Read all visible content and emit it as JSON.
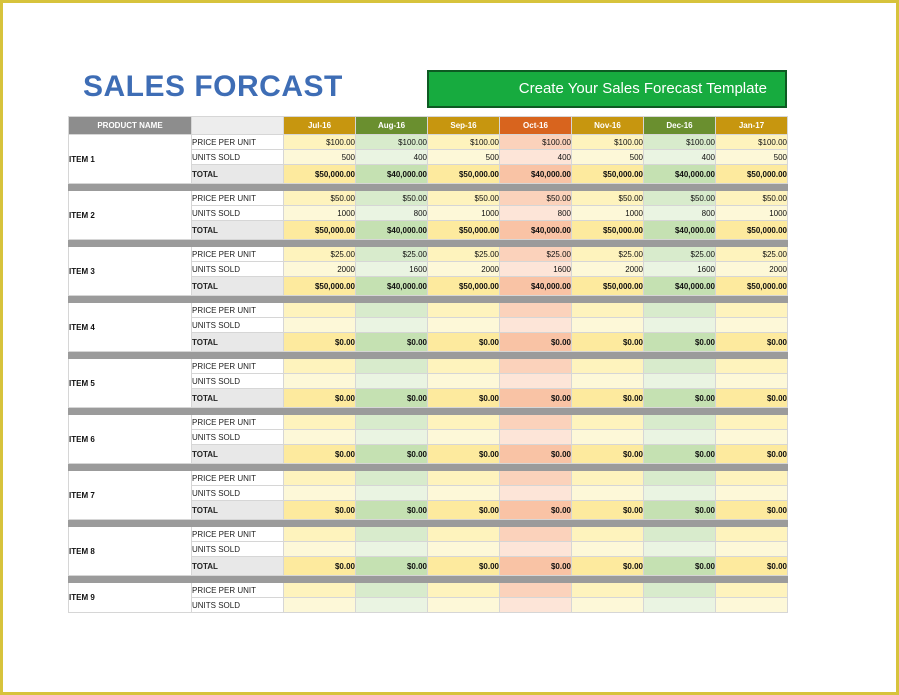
{
  "title": "SALES FORCAST",
  "banner": "Create Your Sales Forecast Template",
  "header": {
    "product_label": "PRODUCT NAME"
  },
  "months": [
    {
      "label": "Jul-16",
      "head": "#c7960f",
      "light": "#fef3bd",
      "mid": "#fdf8d8",
      "dark": "#fdea9e"
    },
    {
      "label": "Aug-16",
      "head": "#6a8f2f",
      "light": "#d8ebcc",
      "mid": "#eaf4e2",
      "dark": "#c5e1b2"
    },
    {
      "label": "Sep-16",
      "head": "#c7960f",
      "light": "#fef3bd",
      "mid": "#fdf8d8",
      "dark": "#fdea9e"
    },
    {
      "label": "Oct-16",
      "head": "#d8641e",
      "light": "#fbd2bb",
      "mid": "#fde5d8",
      "dark": "#f9c3a5"
    },
    {
      "label": "Nov-16",
      "head": "#c7960f",
      "light": "#fef3bd",
      "mid": "#fdf8d8",
      "dark": "#fdea9e"
    },
    {
      "label": "Dec-16",
      "head": "#6a8f2f",
      "light": "#d8ebcc",
      "mid": "#eaf4e2",
      "dark": "#c5e1b2"
    },
    {
      "label": "Jan-17",
      "head": "#c7960f",
      "light": "#fef3bd",
      "mid": "#fdf8d8",
      "dark": "#fdea9e"
    }
  ],
  "row_labels": {
    "price": "PRICE PER UNIT",
    "units": "UNITS SOLD",
    "total": "TOTAL"
  },
  "items": [
    {
      "name": "ITEM 1",
      "price": [
        "$100.00",
        "$100.00",
        "$100.00",
        "$100.00",
        "$100.00",
        "$100.00",
        "$100.00"
      ],
      "units": [
        "500",
        "400",
        "500",
        "400",
        "500",
        "400",
        "500"
      ],
      "total": [
        "$50,000.00",
        "$40,000.00",
        "$50,000.00",
        "$40,000.00",
        "$50,000.00",
        "$40,000.00",
        "$50,000.00"
      ]
    },
    {
      "name": "ITEM 2",
      "price": [
        "$50.00",
        "$50.00",
        "$50.00",
        "$50.00",
        "$50.00",
        "$50.00",
        "$50.00"
      ],
      "units": [
        "1000",
        "800",
        "1000",
        "800",
        "1000",
        "800",
        "1000"
      ],
      "total": [
        "$50,000.00",
        "$40,000.00",
        "$50,000.00",
        "$40,000.00",
        "$50,000.00",
        "$40,000.00",
        "$50,000.00"
      ]
    },
    {
      "name": "ITEM 3",
      "price": [
        "$25.00",
        "$25.00",
        "$25.00",
        "$25.00",
        "$25.00",
        "$25.00",
        "$25.00"
      ],
      "units": [
        "2000",
        "1600",
        "2000",
        "1600",
        "2000",
        "1600",
        "2000"
      ],
      "total": [
        "$50,000.00",
        "$40,000.00",
        "$50,000.00",
        "$40,000.00",
        "$50,000.00",
        "$40,000.00",
        "$50,000.00"
      ]
    },
    {
      "name": "ITEM 4",
      "price": [
        "",
        "",
        "",
        "",
        "",
        "",
        ""
      ],
      "units": [
        "",
        "",
        "",
        "",
        "",
        "",
        ""
      ],
      "total": [
        "$0.00",
        "$0.00",
        "$0.00",
        "$0.00",
        "$0.00",
        "$0.00",
        "$0.00"
      ]
    },
    {
      "name": "ITEM 5",
      "price": [
        "",
        "",
        "",
        "",
        "",
        "",
        ""
      ],
      "units": [
        "",
        "",
        "",
        "",
        "",
        "",
        ""
      ],
      "total": [
        "$0.00",
        "$0.00",
        "$0.00",
        "$0.00",
        "$0.00",
        "$0.00",
        "$0.00"
      ]
    },
    {
      "name": "ITEM 6",
      "price": [
        "",
        "",
        "",
        "",
        "",
        "",
        ""
      ],
      "units": [
        "",
        "",
        "",
        "",
        "",
        "",
        ""
      ],
      "total": [
        "$0.00",
        "$0.00",
        "$0.00",
        "$0.00",
        "$0.00",
        "$0.00",
        "$0.00"
      ]
    },
    {
      "name": "ITEM 7",
      "price": [
        "",
        "",
        "",
        "",
        "",
        "",
        ""
      ],
      "units": [
        "",
        "",
        "",
        "",
        "",
        "",
        ""
      ],
      "total": [
        "$0.00",
        "$0.00",
        "$0.00",
        "$0.00",
        "$0.00",
        "$0.00",
        "$0.00"
      ]
    },
    {
      "name": "ITEM 8",
      "price": [
        "",
        "",
        "",
        "",
        "",
        "",
        ""
      ],
      "units": [
        "",
        "",
        "",
        "",
        "",
        "",
        ""
      ],
      "total": [
        "$0.00",
        "$0.00",
        "$0.00",
        "$0.00",
        "$0.00",
        "$0.00",
        "$0.00"
      ]
    },
    {
      "name": "ITEM 9",
      "price": [
        "",
        "",
        "",
        "",
        "",
        "",
        ""
      ],
      "units": [
        "",
        "",
        "",
        "",
        "",
        "",
        ""
      ],
      "total": null
    }
  ]
}
